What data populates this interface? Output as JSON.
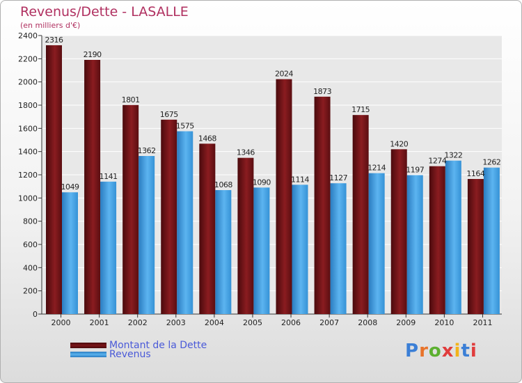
{
  "title": "Revenus/Dette - LASALLE",
  "subtitle": "(en milliers d'€)",
  "colors": {
    "dette": "#7a1518",
    "revenus": "#3f9fe0",
    "title": "#b03060",
    "legend_text": "#4a5ad8"
  },
  "chart_data": {
    "type": "bar",
    "title": "Revenus/Dette - LASALLE",
    "subtitle": "(en milliers d'€)",
    "categories": [
      "2000",
      "2001",
      "2002",
      "2003",
      "2004",
      "2005",
      "2006",
      "2007",
      "2008",
      "2009",
      "2010",
      "2011"
    ],
    "series": [
      {
        "name": "Montant de la Dette",
        "values": [
          2316,
          2190,
          1801,
          1675,
          1468,
          1346,
          2024,
          1873,
          1715,
          1420,
          1274,
          1164
        ]
      },
      {
        "name": "Revenus",
        "values": [
          1049,
          1141,
          1362,
          1575,
          1068,
          1090,
          1114,
          1127,
          1214,
          1197,
          1322,
          1262
        ]
      }
    ],
    "yticks": [
      0,
      200,
      400,
      600,
      800,
      1000,
      1200,
      1400,
      1600,
      1800,
      2000,
      2200,
      2400
    ],
    "ylim": [
      0,
      2400
    ],
    "grid": true,
    "legend_position": "bottom-left"
  },
  "legend": {
    "dette_label": "Montant de la Dette",
    "revenus_label": "Revenus"
  },
  "logo": {
    "letters": [
      "P",
      "r",
      "o",
      "x",
      "i",
      "t",
      "i"
    ],
    "colors": [
      "#3b7fd6",
      "#e8732a",
      "#5cb030",
      "#e03c3c",
      "#f2b31a",
      "#3b7fd6",
      "#e03c3c"
    ]
  }
}
